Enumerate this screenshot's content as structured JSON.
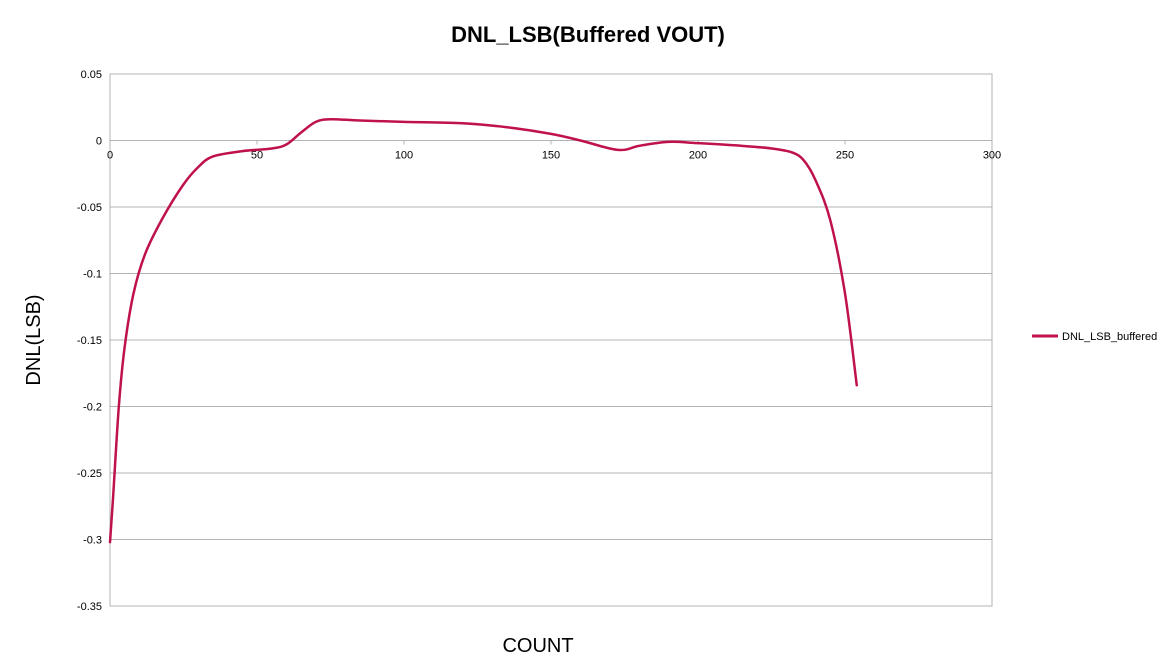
{
  "chart_data": {
    "type": "line",
    "title": "DNL_LSB(Buffered VOUT)",
    "xlabel": "COUNT",
    "ylabel": "DNL(LSB)",
    "xlim": [
      0,
      300
    ],
    "ylim": [
      -0.35,
      0.05
    ],
    "xticks": [
      0,
      50,
      100,
      150,
      200,
      250,
      300
    ],
    "yticks": [
      0.05,
      0,
      -0.05,
      -0.1,
      -0.15,
      -0.2,
      -0.25,
      -0.3,
      -0.35
    ],
    "xtick_labels": [
      "0",
      "50",
      "100",
      "150",
      "200",
      "250",
      "300"
    ],
    "ytick_labels": [
      "0.05",
      "0",
      "-0.05",
      "-0.1",
      "-0.15",
      "-0.2",
      "-0.25",
      "-0.3",
      "-0.35"
    ],
    "grid": true,
    "legend": "right",
    "series": [
      {
        "name": "DNL_LSB_buffered",
        "color": "#c0124a",
        "x": [
          0,
          1,
          3,
          5,
          8,
          12,
          18,
          25,
          30,
          35,
          45,
          55,
          60,
          65,
          70,
          75,
          85,
          100,
          120,
          135,
          150,
          160,
          170,
          175,
          180,
          190,
          200,
          215,
          225,
          232,
          236,
          240,
          245,
          250,
          254
        ],
        "y": [
          -0.302,
          -0.27,
          -0.2,
          -0.155,
          -0.115,
          -0.085,
          -0.058,
          -0.033,
          -0.02,
          -0.012,
          -0.008,
          -0.006,
          -0.003,
          0.006,
          0.014,
          0.016,
          0.015,
          0.014,
          0.013,
          0.01,
          0.005,
          0.0,
          -0.006,
          -0.007,
          -0.004,
          -0.001,
          -0.002,
          -0.004,
          -0.006,
          -0.009,
          -0.015,
          -0.03,
          -0.06,
          -0.115,
          -0.184
        ]
      }
    ]
  }
}
